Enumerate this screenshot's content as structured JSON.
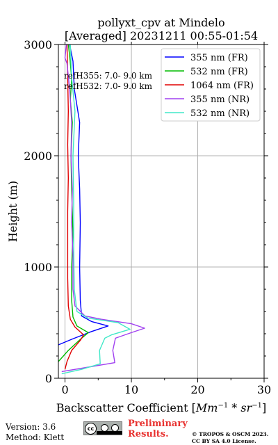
{
  "chart_data": {
    "type": "line",
    "title": "pollyxt_cpv at Mindelo",
    "subtitle": "[Averaged] 20231211 00:55-01:54",
    "xlabel_text": "Backscatter Coefficient [",
    "xlabel_math": "Mm",
    "xlabel_exp1": "−1",
    "xlabel_mid": " * sr",
    "xlabel_exp2": "−1",
    "xlabel_close": "]",
    "ylabel": "Height (m)",
    "xlim": [
      -1,
      30
    ],
    "ylim": [
      0,
      3000
    ],
    "xticks": [
      0,
      10,
      20,
      30
    ],
    "yticks": [
      0,
      1000,
      2000,
      3000
    ],
    "grid": true,
    "legend_position": "top-right",
    "annotations": [
      "refH355:  7.0- 9.0 km",
      "refH532:  7.0- 9.0 km"
    ],
    "series": [
      {
        "name": "355 nm (FR)",
        "color": "#0000ff",
        "points": [
          [
            -1.0,
            300
          ],
          [
            1.0,
            350
          ],
          [
            4.0,
            420
          ],
          [
            6.5,
            470
          ],
          [
            4.0,
            510
          ],
          [
            2.5,
            560
          ],
          [
            2.3,
            700
          ],
          [
            2.2,
            1000
          ],
          [
            2.3,
            1400
          ],
          [
            2.2,
            1700
          ],
          [
            2.0,
            2000
          ],
          [
            2.2,
            2300
          ],
          [
            1.4,
            2600
          ],
          [
            1.2,
            2850
          ],
          [
            0.7,
            3000
          ]
        ]
      },
      {
        "name": "532 nm (FR)",
        "color": "#00bb00",
        "points": [
          [
            -1.0,
            150
          ],
          [
            0.5,
            250
          ],
          [
            2.5,
            360
          ],
          [
            3.5,
            410
          ],
          [
            1.8,
            470
          ],
          [
            1.2,
            550
          ],
          [
            1.0,
            700
          ],
          [
            1.0,
            1000
          ],
          [
            1.2,
            1300
          ],
          [
            1.0,
            1700
          ],
          [
            0.9,
            2000
          ],
          [
            1.1,
            2300
          ],
          [
            0.8,
            2500
          ],
          [
            1.0,
            2700
          ],
          [
            0.7,
            2900
          ],
          [
            0.5,
            3000
          ]
        ]
      },
      {
        "name": "1064 nm (FR)",
        "color": "#e00000",
        "points": [
          [
            0.0,
            80
          ],
          [
            0.3,
            150
          ],
          [
            1.0,
            250
          ],
          [
            2.3,
            340
          ],
          [
            2.8,
            390
          ],
          [
            1.5,
            460
          ],
          [
            0.8,
            530
          ],
          [
            0.5,
            650
          ],
          [
            0.4,
            900
          ],
          [
            0.4,
            1200
          ],
          [
            0.4,
            1500
          ],
          [
            0.5,
            1800
          ],
          [
            0.4,
            2100
          ],
          [
            0.5,
            2400
          ],
          [
            0.4,
            2700
          ],
          [
            0.3,
            3000
          ]
        ]
      },
      {
        "name": "355 nm (NR)",
        "color": "#a040f0",
        "points": [
          [
            -0.5,
            60
          ],
          [
            3.5,
            100
          ],
          [
            7.5,
            140
          ],
          [
            7.2,
            250
          ],
          [
            7.6,
            360
          ],
          [
            10.0,
            410
          ],
          [
            12.0,
            450
          ],
          [
            10.0,
            490
          ],
          [
            5.5,
            530
          ],
          [
            3.0,
            560
          ],
          [
            1.5,
            650
          ],
          [
            1.2,
            800
          ],
          [
            1.2,
            1100
          ],
          [
            1.0,
            1400
          ],
          [
            1.1,
            1700
          ],
          [
            0.9,
            2000
          ],
          [
            1.0,
            2300
          ],
          [
            0.7,
            2600
          ],
          [
            0.3,
            2830
          ],
          [
            0.0,
            2880
          ],
          [
            0.2,
            3000
          ]
        ]
      },
      {
        "name": "532 nm (NR)",
        "color": "#40e8c8",
        "points": [
          [
            -0.5,
            40
          ],
          [
            2.5,
            80
          ],
          [
            5.3,
            130
          ],
          [
            5.2,
            250
          ],
          [
            6.0,
            360
          ],
          [
            7.0,
            390
          ],
          [
            9.8,
            440
          ],
          [
            8.0,
            500
          ],
          [
            3.5,
            540
          ],
          [
            1.8,
            600
          ],
          [
            1.4,
            800
          ],
          [
            1.3,
            1200
          ],
          [
            1.3,
            1600
          ],
          [
            1.2,
            2000
          ],
          [
            1.5,
            2400
          ],
          [
            1.0,
            2700
          ],
          [
            0.8,
            3000
          ]
        ]
      }
    ]
  },
  "footer": {
    "version": "Version: 3.6",
    "method": "Method: Klett",
    "preliminary_line1": "Preliminary",
    "preliminary_line2": "Results.",
    "copyright_line1": "© TROPOS & OSCM 2023.",
    "copyright_line2": "CC BY SA 4.0 License.",
    "license_icon": "cc-by-sa-icon",
    "license_badge_text": "cc",
    "prelim_color": "#e8312f"
  }
}
